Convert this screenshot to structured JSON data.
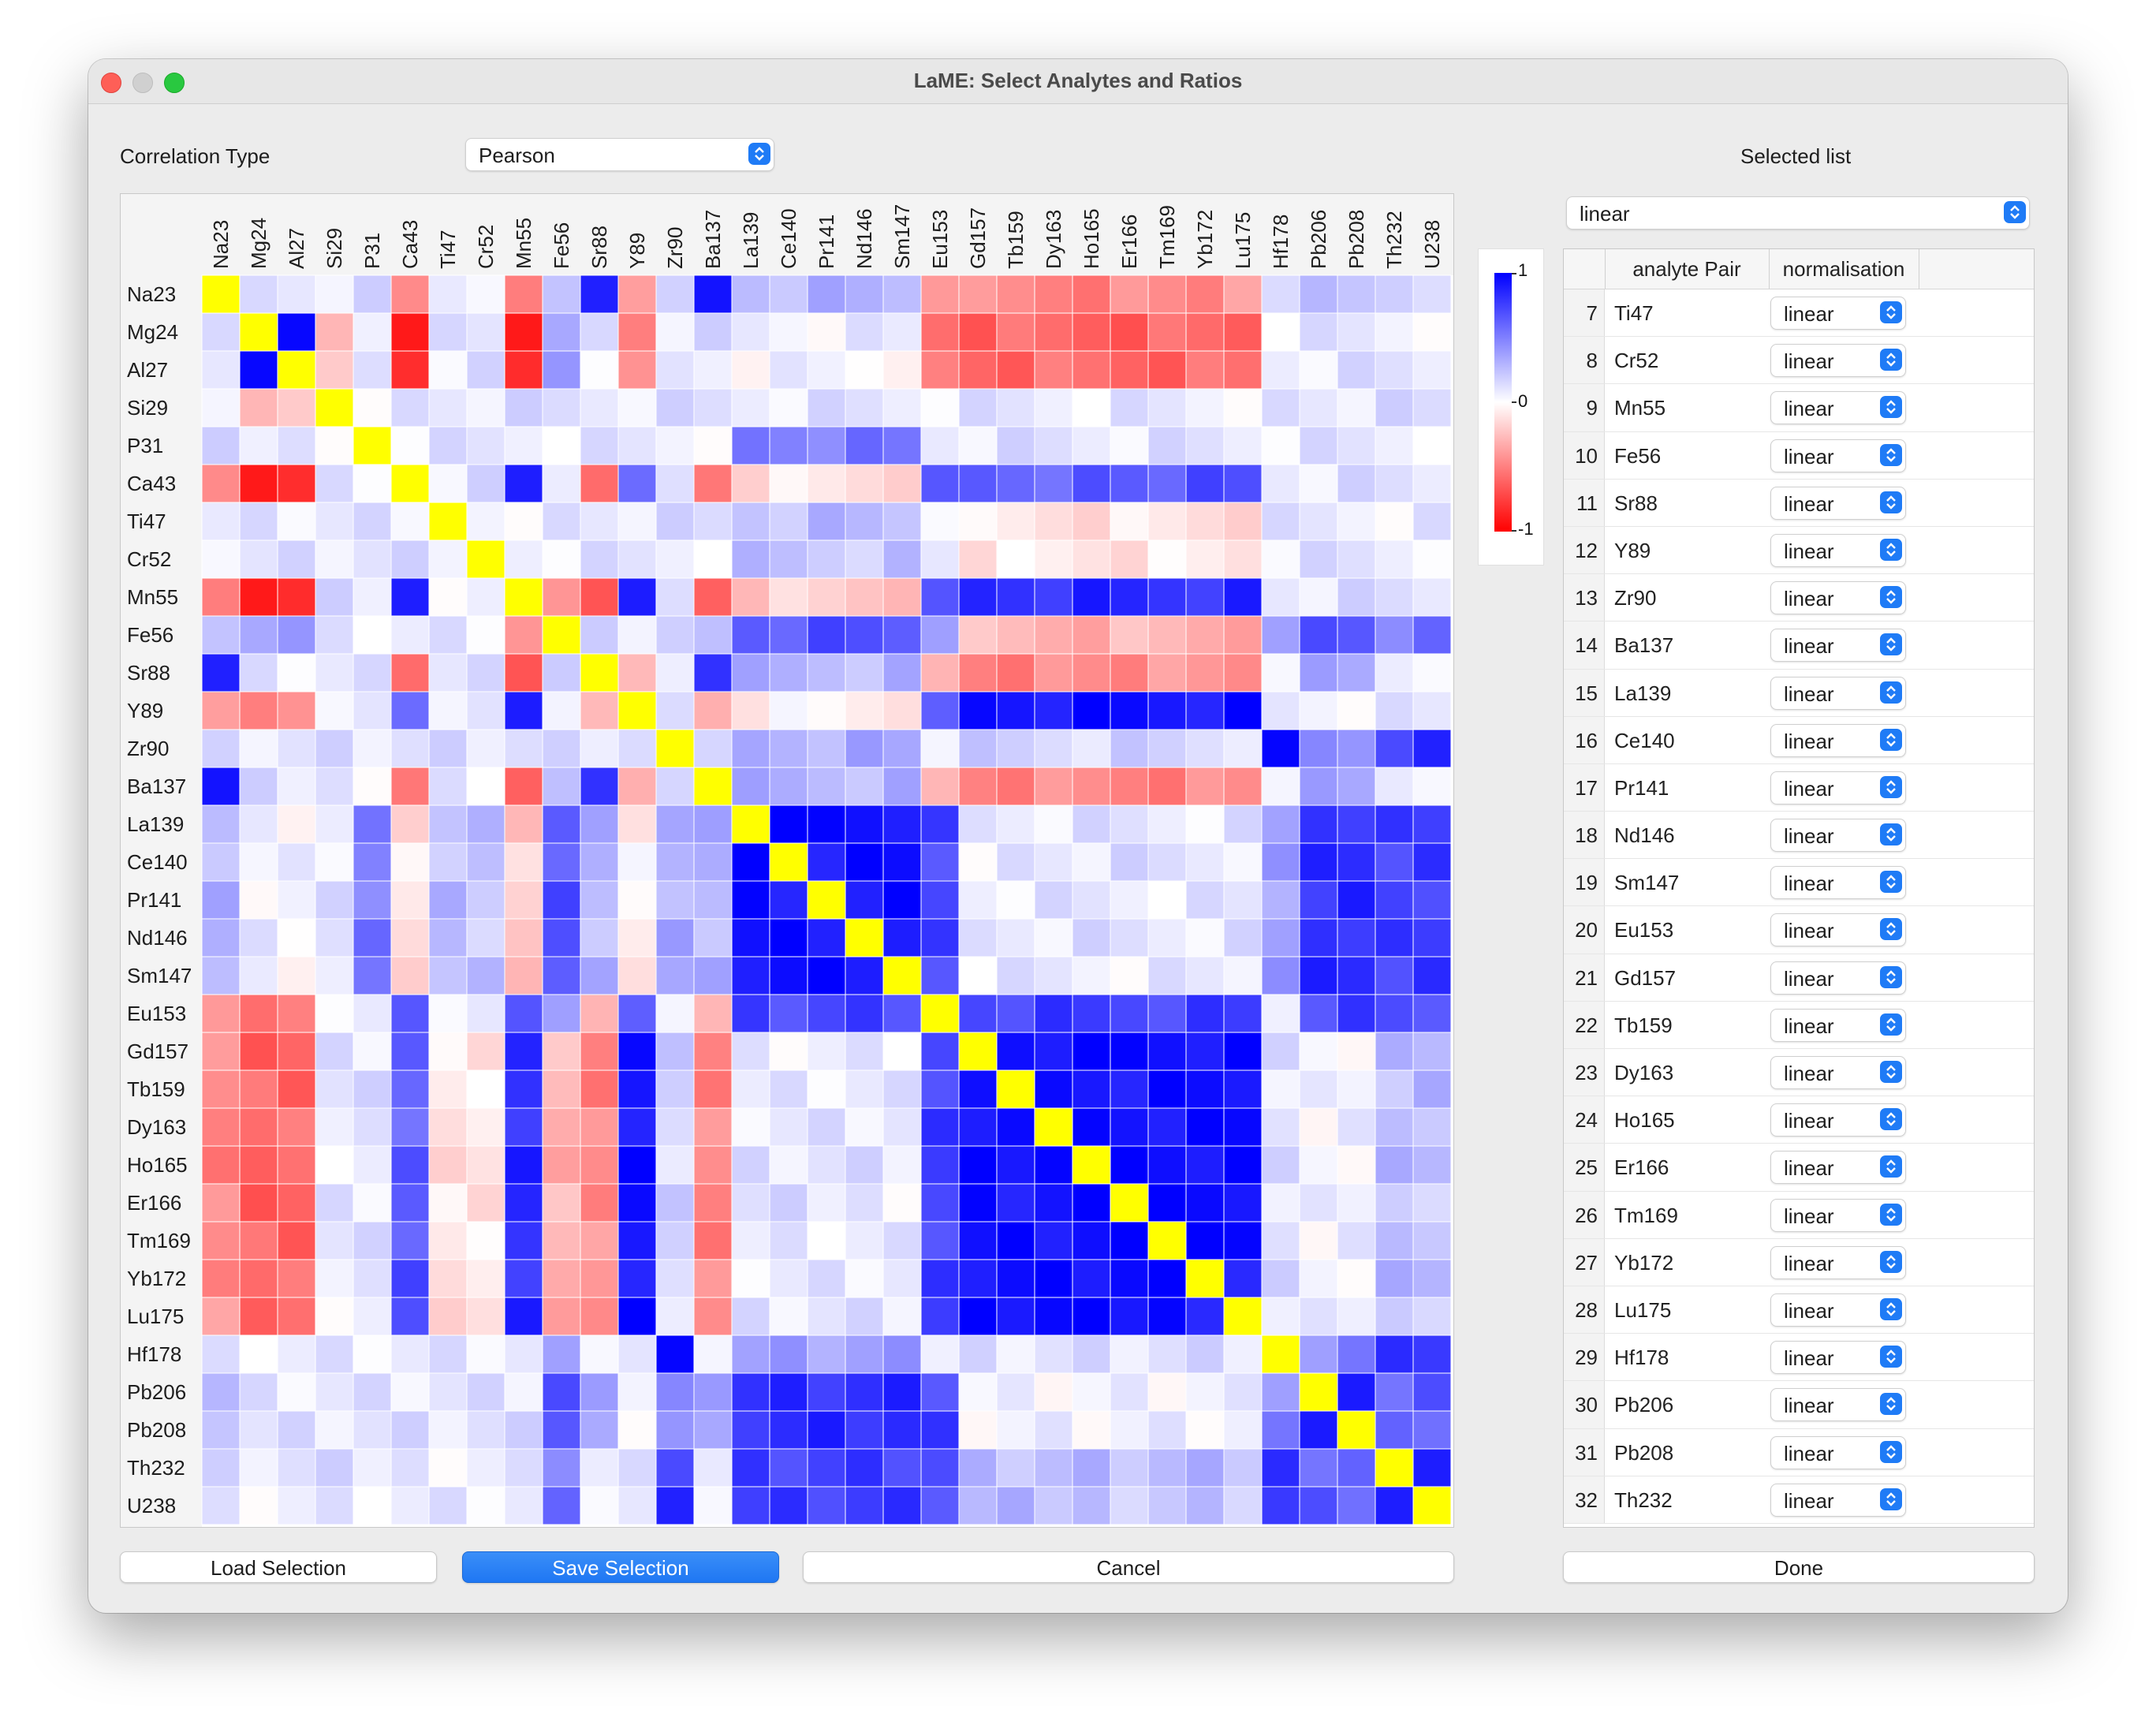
{
  "window": {
    "title": "LaME: Select Analytes and Ratios"
  },
  "controls": {
    "correlation_type_label": "Correlation Type",
    "correlation_type_value": "Pearson",
    "selected_list_label": "Selected list",
    "selected_list_value": "linear"
  },
  "heatmap": {
    "analytes": [
      "Na23",
      "Mg24",
      "Al27",
      "Si29",
      "P31",
      "Ca43",
      "Ti47",
      "Cr52",
      "Mn55",
      "Fe56",
      "Sr88",
      "Y89",
      "Zr90",
      "Ba137",
      "La139",
      "Ce140",
      "Pr141",
      "Nd146",
      "Sm147",
      "Eu153",
      "Gd157",
      "Tb159",
      "Dy163",
      "Ho165",
      "Er166",
      "Tm169",
      "Yb172",
      "Lu175",
      "Hf178",
      "Pb206",
      "Pb208",
      "Th232",
      "U238"
    ],
    "colorbar_labels": [
      "1",
      "0",
      "-1"
    ],
    "colors": {
      "positive": "#0000ff",
      "negative": "#ff0000",
      "neutral": "#ffffff",
      "selected": "#ffff00"
    }
  },
  "table": {
    "headers": [
      "analyte Pair",
      "normalisation"
    ],
    "rows": [
      {
        "n": "7",
        "name": "Ti47",
        "norm": "linear"
      },
      {
        "n": "8",
        "name": "Cr52",
        "norm": "linear"
      },
      {
        "n": "9",
        "name": "Mn55",
        "norm": "linear"
      },
      {
        "n": "10",
        "name": "Fe56",
        "norm": "linear"
      },
      {
        "n": "11",
        "name": "Sr88",
        "norm": "linear"
      },
      {
        "n": "12",
        "name": "Y89",
        "norm": "linear"
      },
      {
        "n": "13",
        "name": "Zr90",
        "norm": "linear"
      },
      {
        "n": "14",
        "name": "Ba137",
        "norm": "linear"
      },
      {
        "n": "15",
        "name": "La139",
        "norm": "linear"
      },
      {
        "n": "16",
        "name": "Ce140",
        "norm": "linear"
      },
      {
        "n": "17",
        "name": "Pr141",
        "norm": "linear"
      },
      {
        "n": "18",
        "name": "Nd146",
        "norm": "linear"
      },
      {
        "n": "19",
        "name": "Sm147",
        "norm": "linear"
      },
      {
        "n": "20",
        "name": "Eu153",
        "norm": "linear"
      },
      {
        "n": "21",
        "name": "Gd157",
        "norm": "linear"
      },
      {
        "n": "22",
        "name": "Tb159",
        "norm": "linear"
      },
      {
        "n": "23",
        "name": "Dy163",
        "norm": "linear"
      },
      {
        "n": "24",
        "name": "Ho165",
        "norm": "linear"
      },
      {
        "n": "25",
        "name": "Er166",
        "norm": "linear"
      },
      {
        "n": "26",
        "name": "Tm169",
        "norm": "linear"
      },
      {
        "n": "27",
        "name": "Yb172",
        "norm": "linear"
      },
      {
        "n": "28",
        "name": "Lu175",
        "norm": "linear"
      },
      {
        "n": "29",
        "name": "Hf178",
        "norm": "linear"
      },
      {
        "n": "30",
        "name": "Pb206",
        "norm": "linear"
      },
      {
        "n": "31",
        "name": "Pb208",
        "norm": "linear"
      },
      {
        "n": "32",
        "name": "Th232",
        "norm": "linear"
      }
    ]
  },
  "buttons": {
    "load": "Load Selection",
    "save": "Save Selection",
    "cancel": "Cancel",
    "done": "Done"
  }
}
